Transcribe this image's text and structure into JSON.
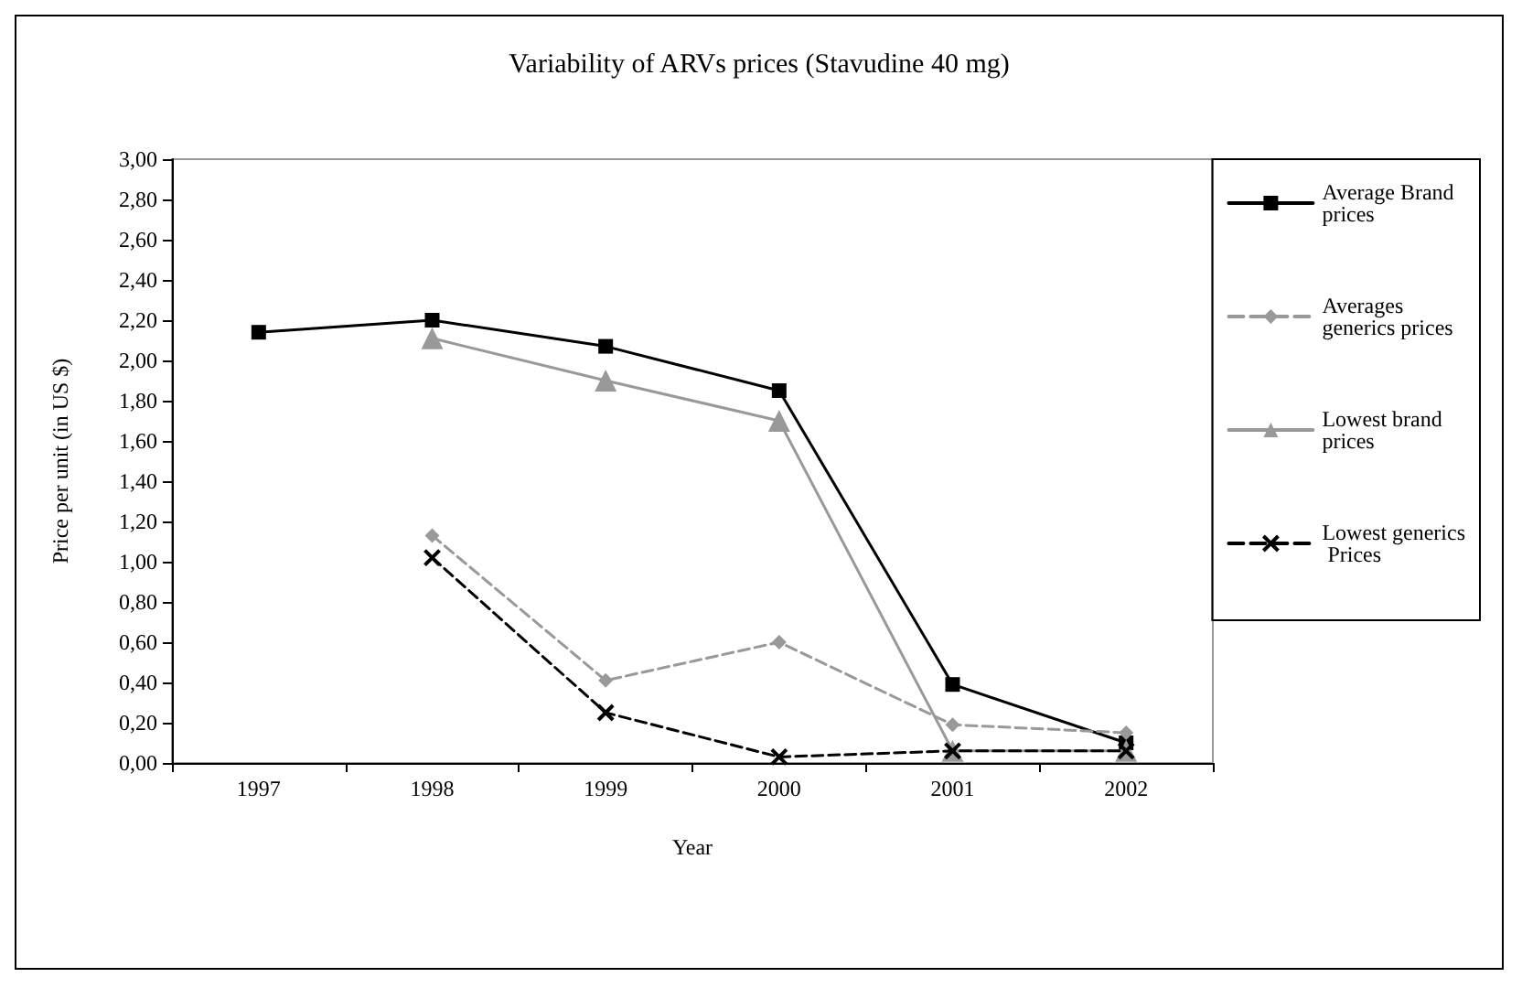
{
  "chart_data": {
    "type": "line",
    "title": "Variability of ARVs prices (Stavudine 40 mg)",
    "xlabel": "Year",
    "ylabel": "Price per unit (in US $)",
    "categories": [
      "1997",
      "1998",
      "1999",
      "2000",
      "2001",
      "2002"
    ],
    "series": [
      {
        "name": "Average Brand prices",
        "color": "#000000",
        "marker": "square",
        "line_style": "solid",
        "values": [
          2.14,
          2.2,
          2.07,
          1.85,
          0.39,
          0.1
        ]
      },
      {
        "name": "Averages generics prices",
        "color": "#999999",
        "marker": "diamond",
        "line_style": "dashed",
        "values": [
          null,
          1.13,
          0.41,
          0.6,
          0.19,
          0.15
        ]
      },
      {
        "name": "Lowest brand prices",
        "color": "#999999",
        "marker": "triangle",
        "line_style": "solid",
        "values": [
          null,
          2.11,
          1.9,
          1.7,
          0.06,
          0.06
        ]
      },
      {
        "name": "Lowest generics Prices",
        "color": "#000000",
        "marker": "cross",
        "line_style": "dashed",
        "values": [
          null,
          1.02,
          0.25,
          0.03,
          0.06,
          0.06
        ]
      }
    ],
    "ylim": [
      0,
      3
    ],
    "yticks": [
      {
        "value": 0,
        "label": "0,00"
      },
      {
        "value": 0.2,
        "label": "0,20"
      },
      {
        "value": 0.4,
        "label": "0,40"
      },
      {
        "value": 0.6,
        "label": "0,60"
      },
      {
        "value": 0.8,
        "label": "0,80"
      },
      {
        "value": 1,
        "label": "1,00"
      },
      {
        "value": 1.2,
        "label": "1,20"
      },
      {
        "value": 1.4,
        "label": "1,40"
      },
      {
        "value": 1.6,
        "label": "1,60"
      },
      {
        "value": 1.8,
        "label": "1,80"
      },
      {
        "value": 2,
        "label": "2,00"
      },
      {
        "value": 2.2,
        "label": "2,20"
      },
      {
        "value": 2.4,
        "label": "2,40"
      },
      {
        "value": 2.6,
        "label": "2,60"
      },
      {
        "value": 2.8,
        "label": "2,80"
      },
      {
        "value": 3,
        "label": "3,00"
      }
    ],
    "grid": false,
    "legend": "right"
  }
}
